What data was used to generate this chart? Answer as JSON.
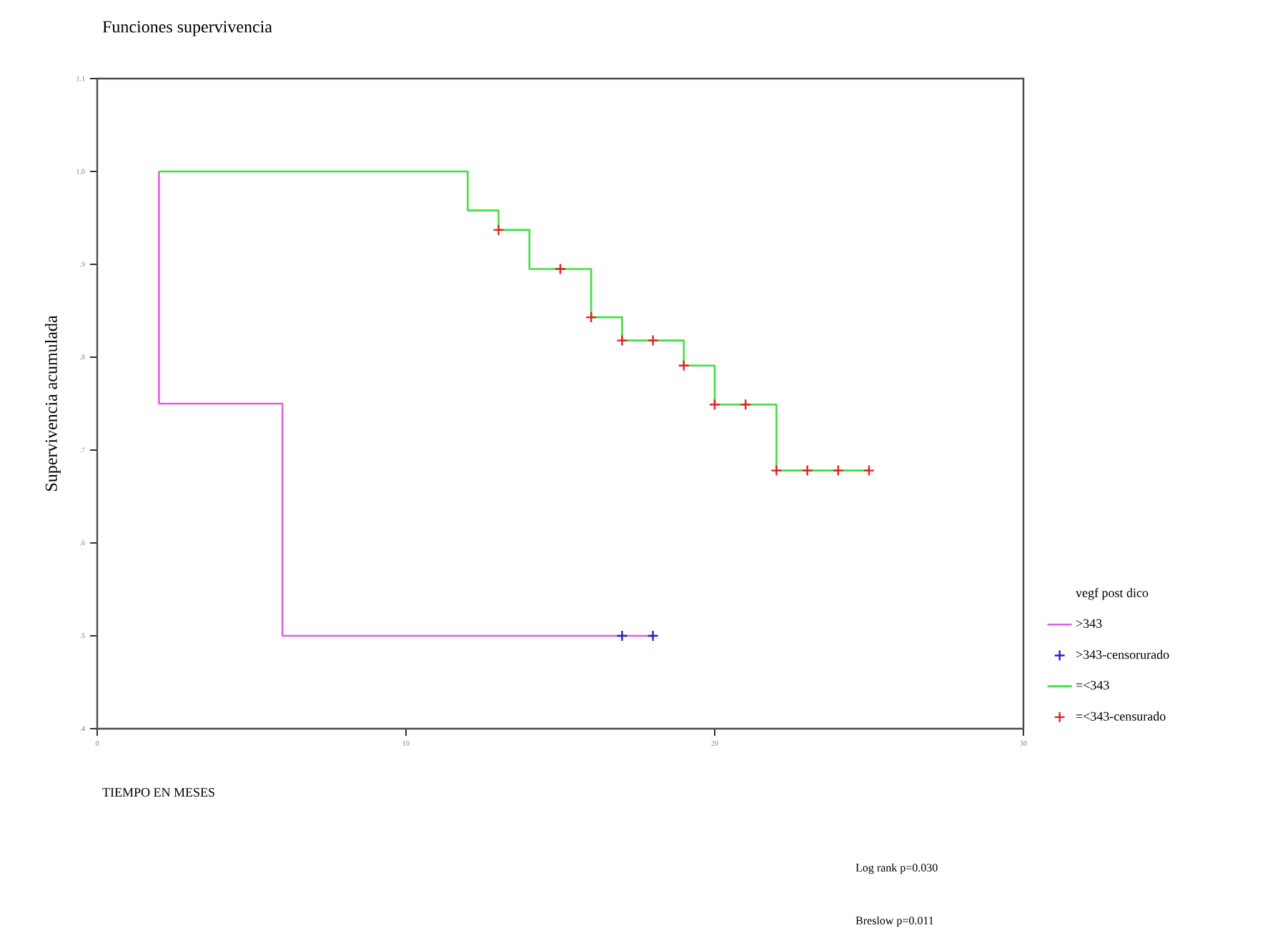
{
  "chart_data": {
    "type": "step",
    "title": "Funciones supervivencia",
    "xlabel": "TIEMPO EN MESES",
    "ylabel": "Supervivencia acumulada",
    "legend_title": "vegf post dico",
    "series": [
      {
        "name": ">343",
        "color": "#e060e0",
        "marker": "none",
        "x": [
          2,
          2,
          6,
          18
        ],
        "values": [
          1.0,
          0.75,
          0.5,
          0.5
        ]
      },
      {
        "name": ">343-censorurado",
        "type": "scatter",
        "color": "#2020d0",
        "marker": "cross",
        "x": [
          17,
          18
        ],
        "values": [
          0.5,
          0.5
        ]
      },
      {
        "name": "=<343",
        "color": "#40e040",
        "marker": "none",
        "x": [
          2,
          12,
          13,
          14,
          16,
          17,
          19,
          20,
          22,
          25
        ],
        "values": [
          1.0,
          0.958,
          0.937,
          0.895,
          0.843,
          0.818,
          0.791,
          0.749,
          0.678,
          0.678
        ]
      },
      {
        "name": "=<343-censurado",
        "type": "scatter",
        "color": "#e02020",
        "marker": "cross",
        "x": [
          13,
          15,
          16,
          17,
          18,
          19,
          20,
          21,
          22,
          23,
          24,
          25
        ],
        "values": [
          0.937,
          0.895,
          0.843,
          0.818,
          0.818,
          0.791,
          0.749,
          0.749,
          0.678,
          0.678,
          0.678,
          0.678
        ]
      }
    ],
    "xlim": [
      0,
      30
    ],
    "xticks": [
      0,
      10,
      20,
      30
    ],
    "ylim": [
      0.4,
      1.1
    ],
    "yticks": [
      {
        "value": 0.4,
        "label": ".4"
      },
      {
        "value": 0.5,
        "label": ".5"
      },
      {
        "value": 0.6,
        "label": ".6"
      },
      {
        "value": 0.7,
        "label": ".7"
      },
      {
        "value": 0.8,
        "label": ".8"
      },
      {
        "value": 0.9,
        "label": ".9"
      },
      {
        "value": 1.0,
        "label": "1.0"
      },
      1.1
    ],
    "legend": "right",
    "grid": false,
    "annotations": [
      "Log rank p=0.030",
      "Breslow  p=0.011"
    ]
  }
}
